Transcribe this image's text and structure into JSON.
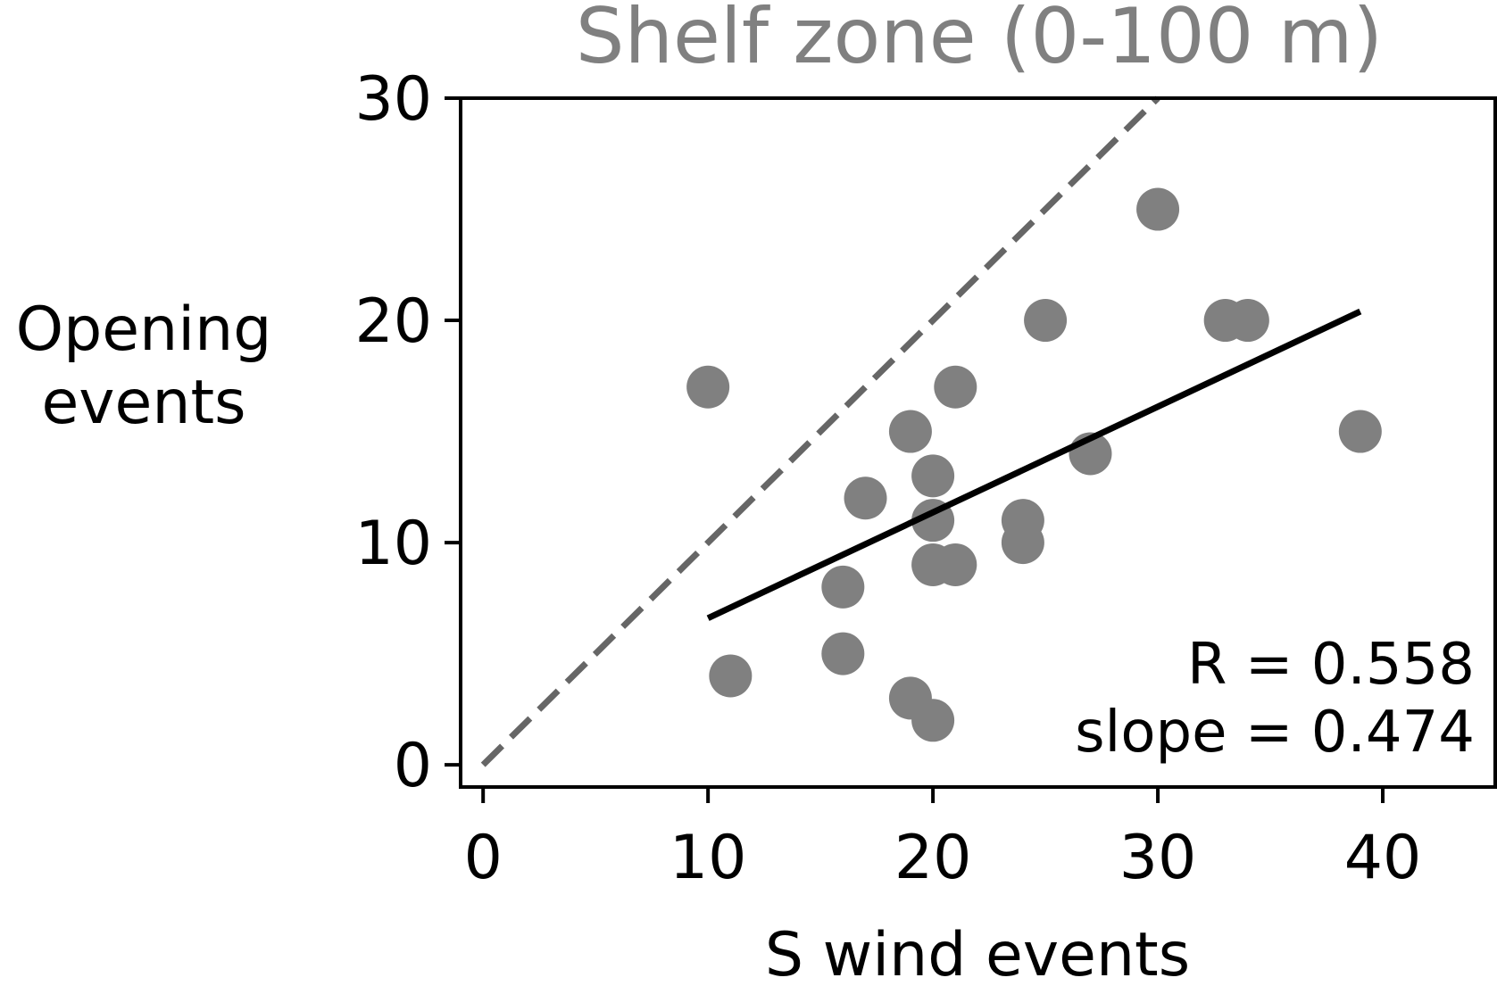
{
  "chart_data": {
    "type": "scatter",
    "title": "Shelf zone (0-100 m)",
    "xlabel": "S wind events",
    "ylabel_lines": [
      "Opening",
      "events"
    ],
    "xlim": [
      -1,
      45
    ],
    "ylim": [
      -1,
      30
    ],
    "xticks": [
      0,
      10,
      20,
      30,
      40
    ],
    "yticks": [
      0,
      10,
      20,
      30
    ],
    "grid": false,
    "point_color": "#808080",
    "points": [
      {
        "x": 10,
        "y": 17
      },
      {
        "x": 11,
        "y": 4
      },
      {
        "x": 16,
        "y": 8
      },
      {
        "x": 16,
        "y": 5
      },
      {
        "x": 17,
        "y": 12
      },
      {
        "x": 19,
        "y": 15
      },
      {
        "x": 19,
        "y": 3
      },
      {
        "x": 20,
        "y": 13
      },
      {
        "x": 20,
        "y": 11
      },
      {
        "x": 20,
        "y": 9
      },
      {
        "x": 20,
        "y": 2
      },
      {
        "x": 21,
        "y": 17
      },
      {
        "x": 21,
        "y": 9
      },
      {
        "x": 24,
        "y": 11
      },
      {
        "x": 24,
        "y": 10
      },
      {
        "x": 25,
        "y": 20
      },
      {
        "x": 27,
        "y": 14
      },
      {
        "x": 30,
        "y": 25
      },
      {
        "x": 33,
        "y": 20
      },
      {
        "x": 34,
        "y": 20
      },
      {
        "x": 39,
        "y": 15
      }
    ],
    "one_to_one_line": {
      "x": [
        0,
        30
      ],
      "y": [
        0,
        30
      ],
      "color": "#666666",
      "style": "dashed"
    },
    "fit_line": {
      "x": [
        10,
        39
      ],
      "y": [
        6.6,
        20.4
      ],
      "color": "#000000"
    },
    "annotations": [
      "R = 0.558",
      "slope = 0.474"
    ]
  }
}
